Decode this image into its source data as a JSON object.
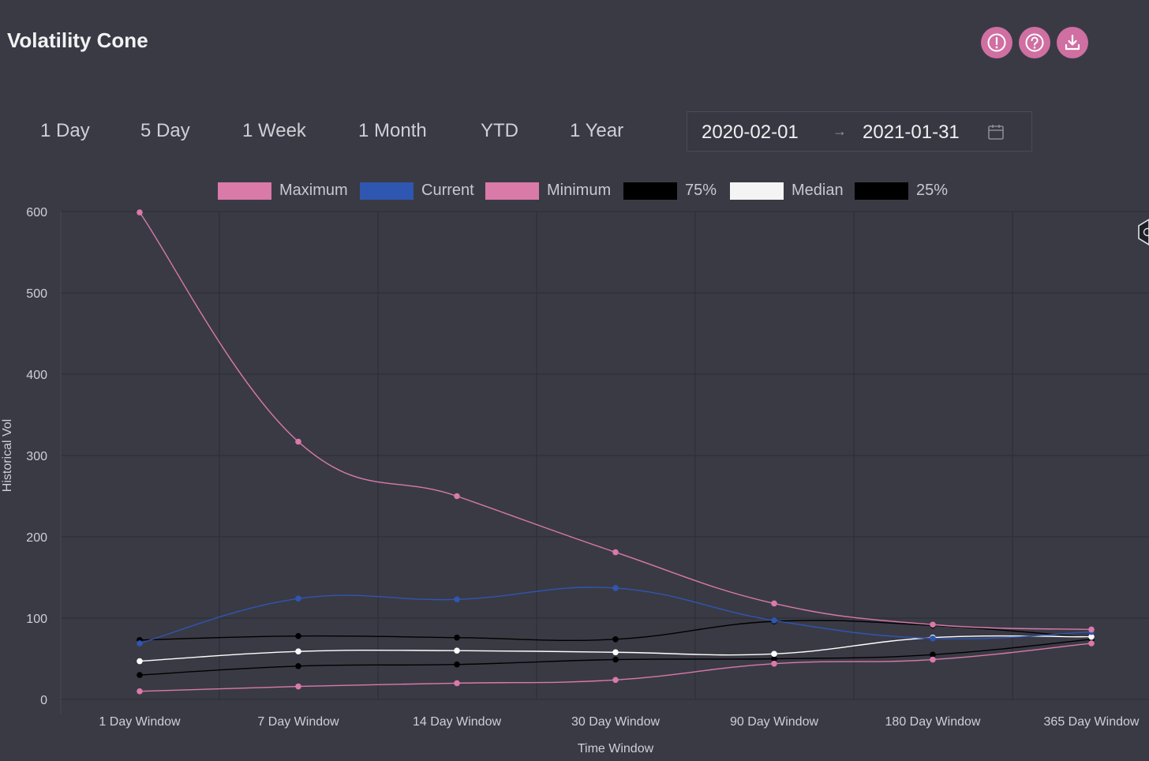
{
  "header": {
    "title": "Volatility Cone"
  },
  "toolbar": {
    "icons": [
      "alert-icon",
      "help-icon",
      "download-icon"
    ],
    "accent_color": "#cf6fa2"
  },
  "ranges": [
    "1 Day",
    "5 Day",
    "1 Week",
    "1 Month",
    "YTD",
    "1 Year"
  ],
  "date_range": {
    "start": "2020-02-01",
    "separator": "→",
    "end": "2021-01-31"
  },
  "chart_data": {
    "type": "line",
    "xlabel": "Time Window",
    "ylabel": "Historical Vol",
    "ylim": [
      0,
      600
    ],
    "yticks": [
      0,
      100,
      200,
      300,
      400,
      500,
      600
    ],
    "grid": true,
    "legend_position": "top-center",
    "categories": [
      "1 Day Window",
      "7 Day Window",
      "14 Day Window",
      "30 Day Window",
      "90 Day Window",
      "180 Day Window",
      "365 Day Window"
    ],
    "series": [
      {
        "name": "Maximum",
        "color": "#d97aa8",
        "values": [
          599,
          317,
          250,
          181,
          118,
          92,
          86
        ]
      },
      {
        "name": "Current",
        "color": "#2f56b0",
        "values": [
          69,
          124,
          123,
          137,
          97,
          75,
          83
        ]
      },
      {
        "name": "Minimum",
        "color": "#d97aa8",
        "values": [
          10,
          16,
          20,
          24,
          44,
          49,
          69
        ]
      },
      {
        "name": "75%",
        "color": "#000000",
        "values": [
          73,
          78,
          76,
          74,
          96,
          91,
          76
        ]
      },
      {
        "name": "Median",
        "color": "#ffffff",
        "values": [
          47,
          59,
          60,
          58,
          56,
          76,
          77
        ]
      },
      {
        "name": "25%",
        "color": "#000000",
        "values": [
          30,
          41,
          43,
          49,
          50,
          55,
          74
        ]
      }
    ]
  }
}
